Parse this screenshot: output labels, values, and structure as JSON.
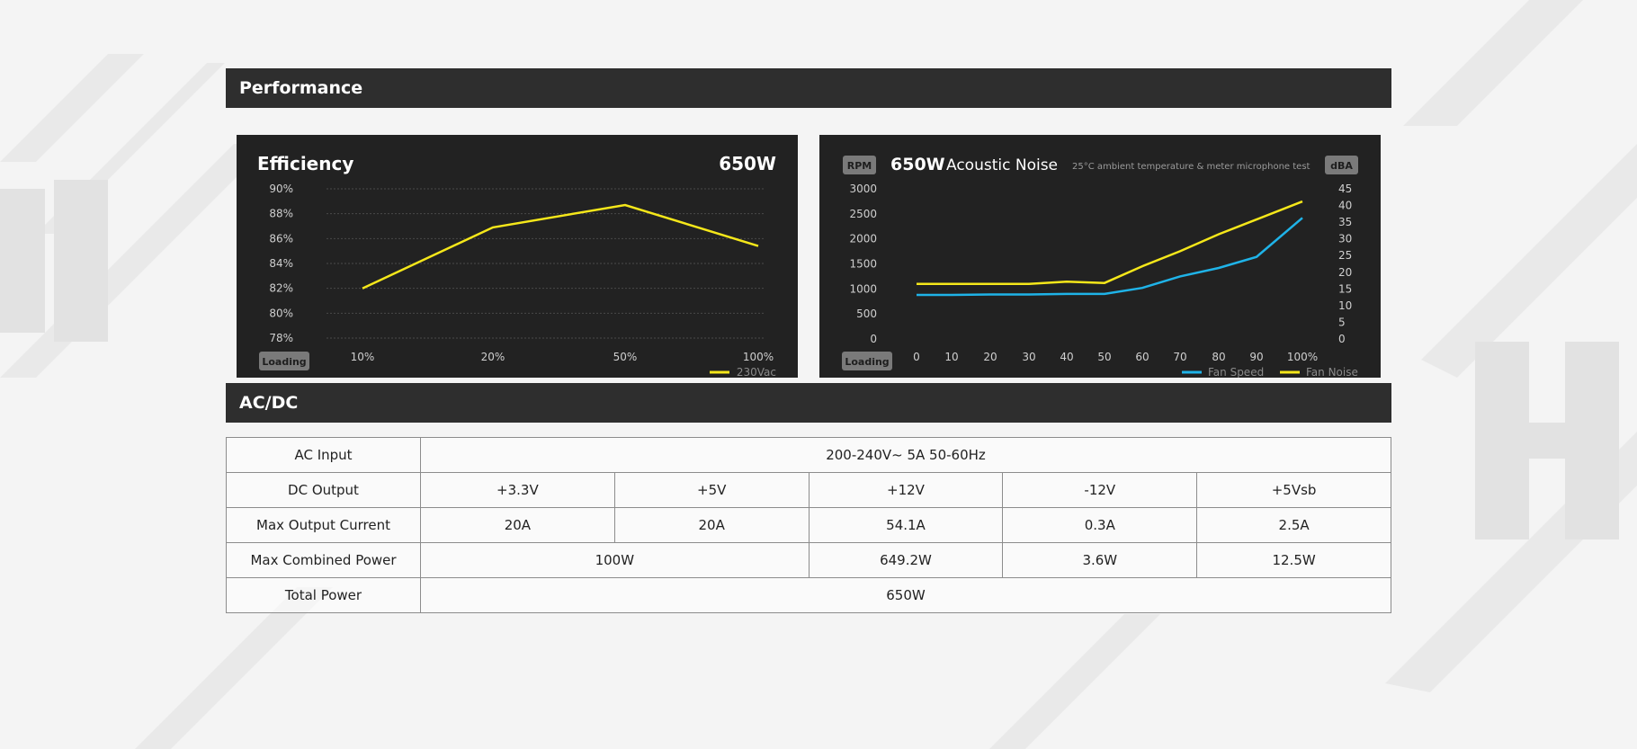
{
  "performance": {
    "title": "Performance",
    "efficiency": {
      "title": "Efficiency",
      "wattage": "650W",
      "loading_label": "Loading",
      "accent": "#f5e71a"
    },
    "acoustic": {
      "wattage": "650W",
      "title": "Acoustic Noise",
      "note": "25°C ambient temperature & meter microphone test",
      "left_unit": "RPM",
      "right_unit": "dBA",
      "loading_label": "Loading",
      "colors": {
        "fan_speed": "#1fb3e8",
        "fan_noise": "#f5e71a"
      }
    }
  },
  "chart_data": [
    {
      "type": "line",
      "title": "Efficiency",
      "x": [
        "10%",
        "20%",
        "50%",
        "100%"
      ],
      "series": [
        {
          "name": "230Vac",
          "values": [
            82.0,
            86.9,
            88.7,
            85.4
          ]
        }
      ],
      "y_ticks": [
        "90%",
        "88%",
        "86%",
        "84%",
        "82%",
        "80%",
        "78%"
      ],
      "ylim": [
        78,
        90
      ],
      "xlabel": "Loading",
      "grid": true,
      "legend": "bottom-right"
    },
    {
      "type": "line",
      "title": "Acoustic Noise",
      "x": [
        "0",
        "10",
        "20",
        "30",
        "40",
        "50",
        "60",
        "70",
        "80",
        "90",
        "100%"
      ],
      "series": [
        {
          "name": "Fan Speed",
          "axis": "left",
          "values": [
            880,
            880,
            890,
            890,
            900,
            900,
            1020,
            1250,
            1420,
            1640,
            2420
          ]
        },
        {
          "name": "Fan Noise",
          "axis": "right",
          "values": [
            16.5,
            16.5,
            16.5,
            16.5,
            17.2,
            16.8,
            21.8,
            26.3,
            31.4,
            35.8,
            41.2
          ]
        }
      ],
      "y_ticks_left": [
        "3000",
        "2500",
        "2000",
        "1500",
        "1000",
        "500",
        "0"
      ],
      "y_ticks_right": [
        "45",
        "40",
        "35",
        "30",
        "25",
        "20",
        "15",
        "10",
        "5",
        "0"
      ],
      "ylim_left": [
        0,
        3000
      ],
      "ylim_right": [
        0,
        45
      ],
      "xlabel": "Loading",
      "ylabel_left": "RPM",
      "ylabel_right": "dBA",
      "legend": "bottom-right"
    }
  ],
  "acdc": {
    "title": "AC/DC",
    "rows": [
      {
        "label": "AC Input",
        "cells": [
          {
            "text": "200-240V~ 5A 50-60Hz",
            "span": 5
          }
        ]
      },
      {
        "label": "DC Output",
        "cells": [
          {
            "text": "+3.3V",
            "span": 1
          },
          {
            "text": "+5V",
            "span": 1
          },
          {
            "text": "+12V",
            "span": 1
          },
          {
            "text": "-12V",
            "span": 1
          },
          {
            "text": "+5Vsb",
            "span": 1
          }
        ]
      },
      {
        "label": "Max Output Current",
        "cells": [
          {
            "text": "20A",
            "span": 1
          },
          {
            "text": "20A",
            "span": 1
          },
          {
            "text": "54.1A",
            "span": 1
          },
          {
            "text": "0.3A",
            "span": 1
          },
          {
            "text": "2.5A",
            "span": 1
          }
        ]
      },
      {
        "label": "Max Combined Power",
        "cells": [
          {
            "text": "100W",
            "span": 2
          },
          {
            "text": "649.2W",
            "span": 1
          },
          {
            "text": "3.6W",
            "span": 1
          },
          {
            "text": "12.5W",
            "span": 1
          }
        ]
      },
      {
        "label": "Total Power",
        "cells": [
          {
            "text": "650W",
            "span": 5
          }
        ]
      }
    ]
  }
}
